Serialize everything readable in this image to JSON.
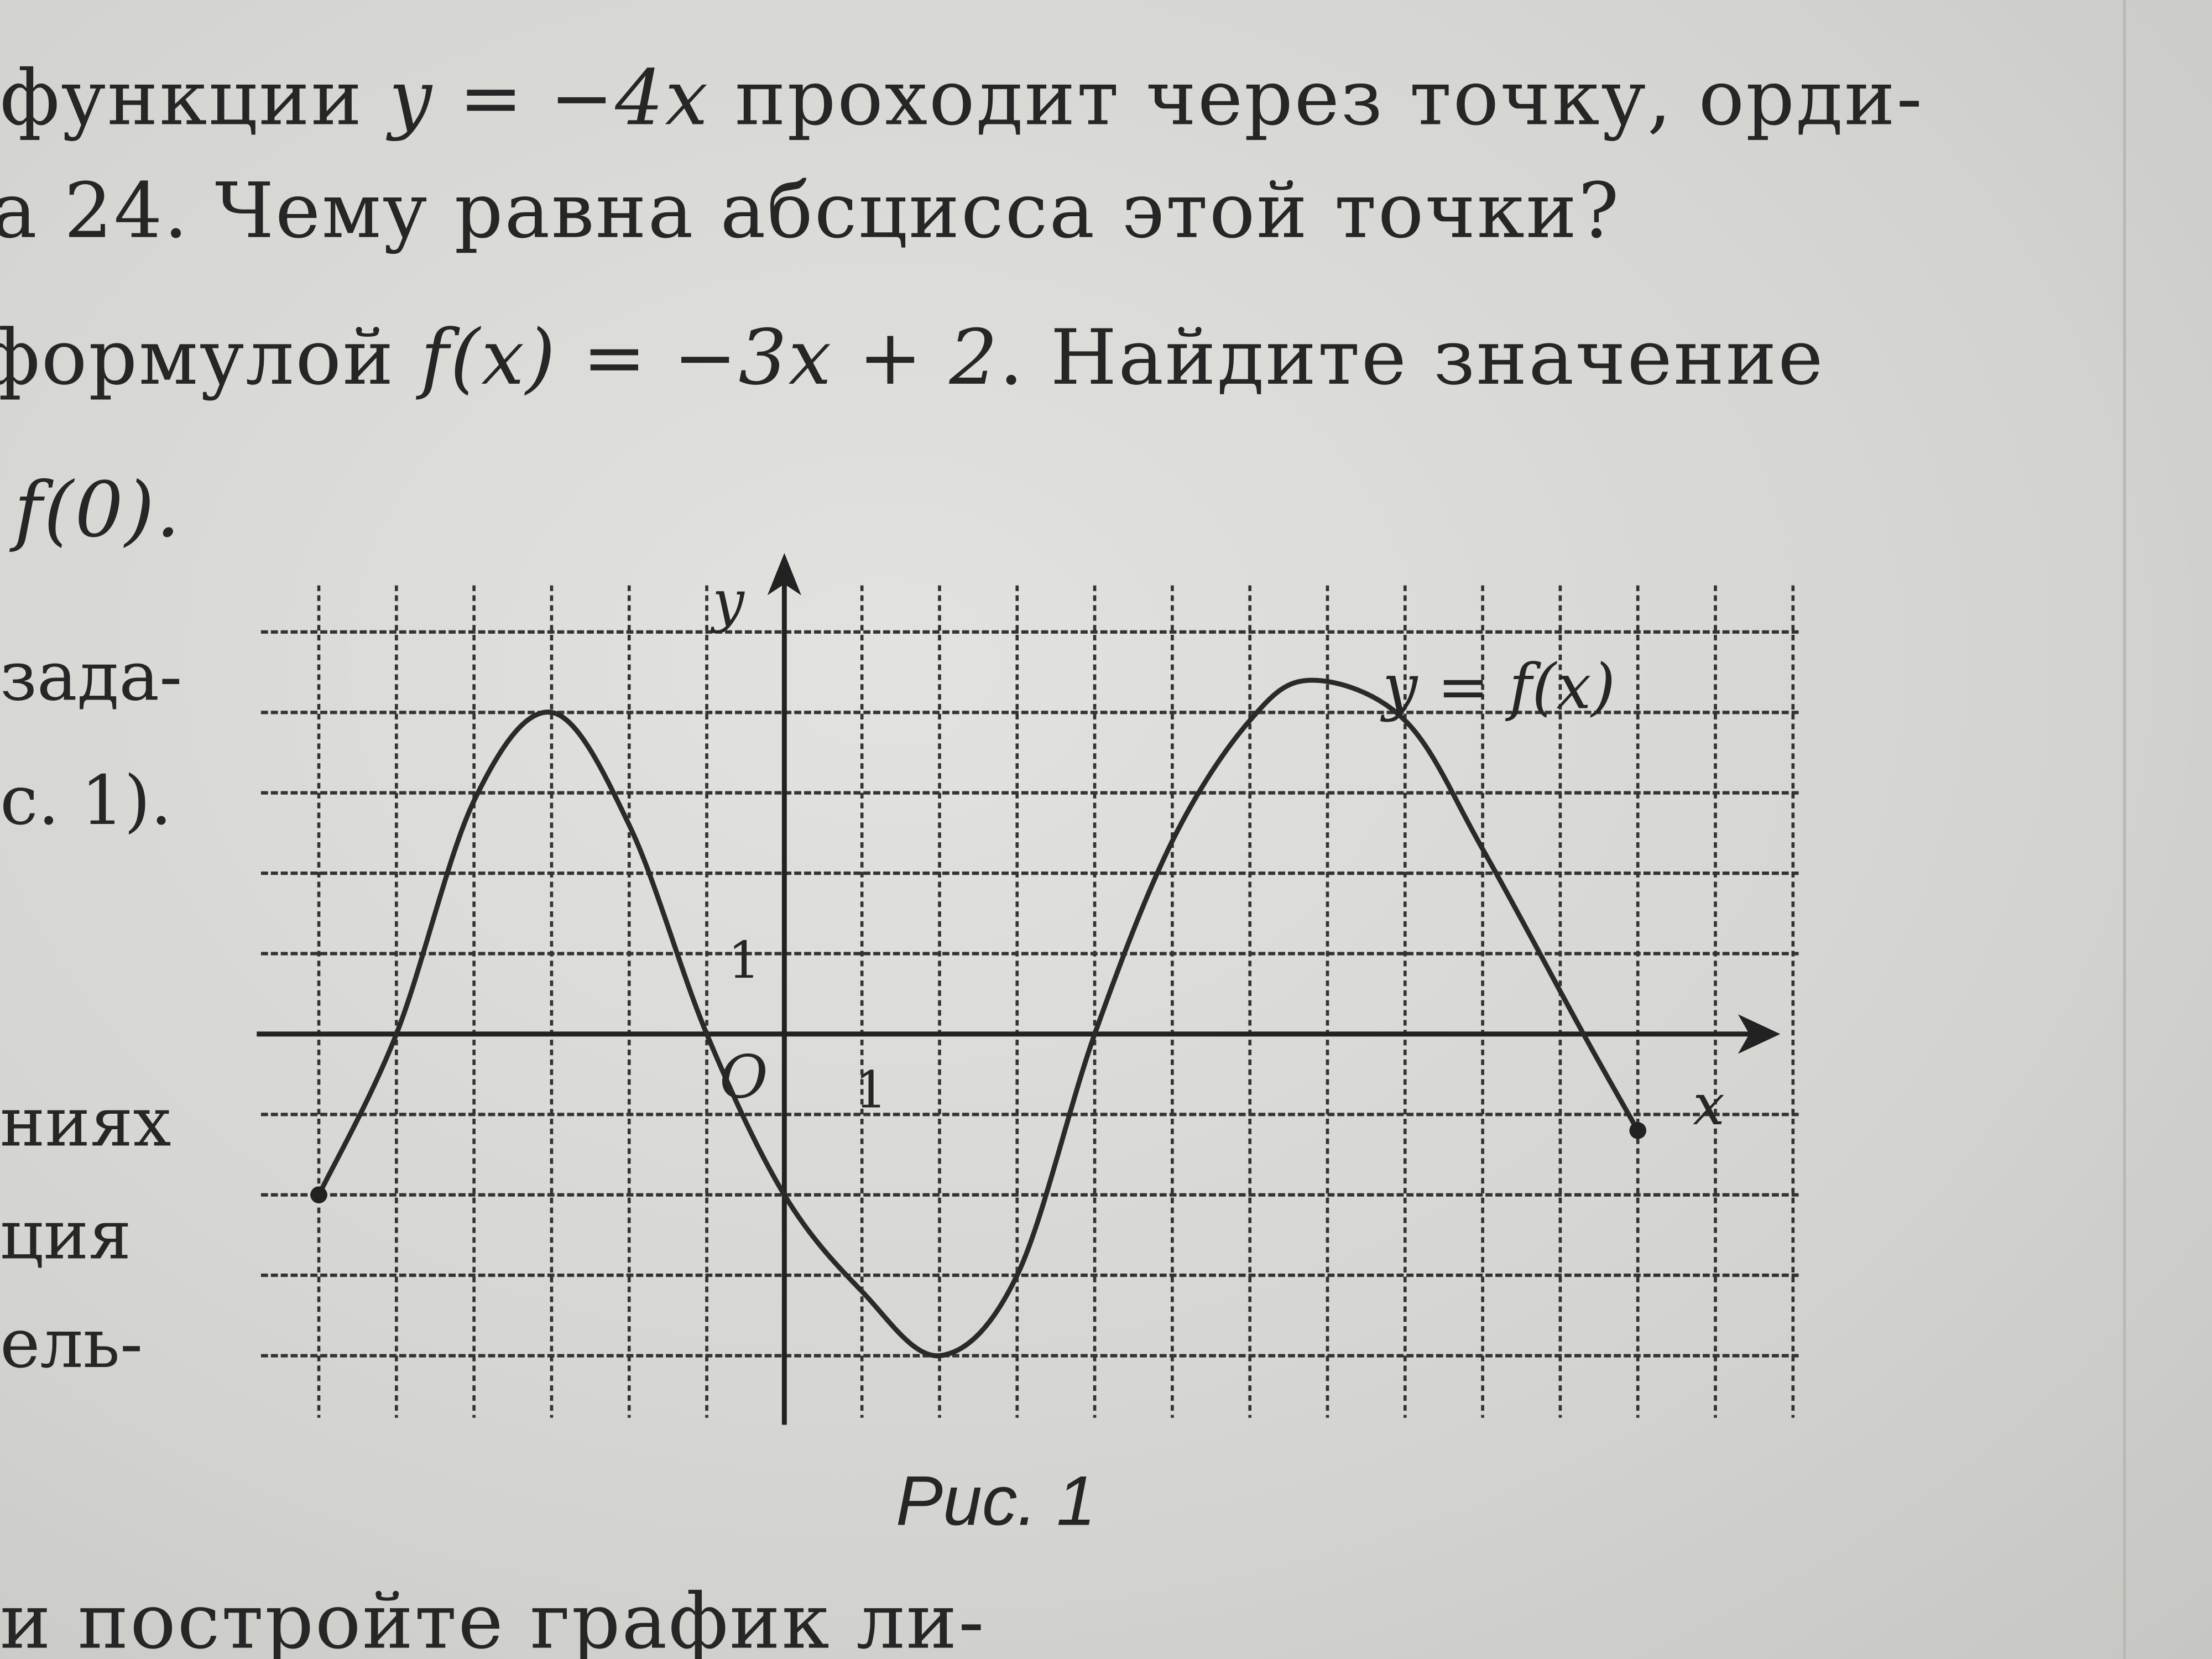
{
  "text": {
    "line1": {
      "pre": "функции ",
      "formula": "y = −4x",
      "post": " проходит через точку, орди-"
    },
    "line2": "а 24. Чему равна абсцисса этой точки?",
    "line3": {
      "pre": "формулой ",
      "formula": "f(x) = −3x + 2",
      "post": ". Найдите значение"
    },
    "line4": "f(0).",
    "left_fragments": [
      "зада-",
      "с. 1).",
      "ниях",
      "ция",
      "ель-"
    ],
    "bottom_line": "и постройте график ли-"
  },
  "figure": {
    "caption": "Рис. 1",
    "y_axis_label": "y",
    "x_axis_label": "x",
    "origin_label": "O",
    "x_unit_label": "1",
    "y_unit_label": "1",
    "curve_label": "y = f(x)",
    "x_range": [
      -6,
      13
    ],
    "y_range": [
      -4,
      5
    ],
    "curve_points": [
      [
        -6,
        -2
      ],
      [
        -5,
        0
      ],
      [
        -4,
        2.9
      ],
      [
        -3,
        4
      ],
      [
        -2,
        2.6
      ],
      [
        -1,
        0
      ],
      [
        0,
        -2
      ],
      [
        1,
        -3.2
      ],
      [
        2,
        -4
      ],
      [
        3,
        -3
      ],
      [
        4,
        0
      ],
      [
        5,
        2.4
      ],
      [
        6,
        3.9
      ],
      [
        6.8,
        4.4
      ],
      [
        8,
        3.9
      ],
      [
        9,
        2.3
      ],
      [
        10.3,
        0
      ],
      [
        11,
        -1.2
      ]
    ],
    "endpoints": [
      [
        -6,
        -2
      ],
      [
        11,
        -1.2
      ]
    ]
  }
}
